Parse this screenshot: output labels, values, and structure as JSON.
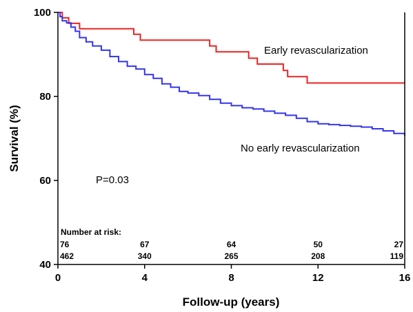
{
  "chart_data": {
    "type": "line",
    "title": "",
    "xlabel": "Follow-up (years)",
    "ylabel": "Survival (%)",
    "xlim": [
      0,
      16
    ],
    "ylim": [
      40,
      100
    ],
    "xticks": [
      0,
      4,
      8,
      12,
      16
    ],
    "yticks": [
      40,
      60,
      80,
      100
    ],
    "grid": false,
    "legend": "none",
    "series": [
      {
        "name": "Early revascularization",
        "color": "#ee2222",
        "step": true,
        "x": [
          0,
          0.2,
          0.3,
          0.5,
          0.7,
          1.0,
          3.5,
          3.8,
          7.0,
          7.3,
          8.8,
          9.2,
          10.4,
          10.6,
          11.5,
          16
        ],
        "y": [
          100,
          98.7,
          98.7,
          97.4,
          97.4,
          96.1,
          94.8,
          93.4,
          92.0,
          90.6,
          89.1,
          87.7,
          86.2,
          84.7,
          83.2,
          83.2
        ]
      },
      {
        "name": "No early revascularization",
        "color": "#3333ee",
        "step": true,
        "x": [
          0,
          0.1,
          0.2,
          0.4,
          0.6,
          0.8,
          1.0,
          1.3,
          1.6,
          2.0,
          2.4,
          2.8,
          3.2,
          3.6,
          4.0,
          4.4,
          4.8,
          5.2,
          5.6,
          6.0,
          6.5,
          7.0,
          7.5,
          8.0,
          8.5,
          9.0,
          9.5,
          10.0,
          10.5,
          11.0,
          11.5,
          12.0,
          12.5,
          13.0,
          13.5,
          14.0,
          14.5,
          15.0,
          15.5,
          16.0
        ],
        "y": [
          100,
          99.0,
          98.0,
          97.5,
          96.5,
          95.5,
          94.0,
          93.0,
          92.0,
          91.0,
          89.5,
          88.3,
          87.2,
          86.5,
          85.2,
          84.3,
          83.0,
          82.2,
          81.2,
          80.8,
          80.2,
          79.3,
          78.4,
          77.8,
          77.3,
          77.0,
          76.5,
          76.0,
          75.5,
          74.8,
          74.0,
          73.5,
          73.3,
          73.1,
          72.9,
          72.7,
          72.3,
          71.8,
          71.2,
          70.6
        ]
      }
    ],
    "annotations": {
      "early_label": "Early revascularization",
      "no_early_label": "No early revascularization",
      "p_value": "P=0.03"
    },
    "number_at_risk": {
      "heading": "Number at risk:",
      "times": [
        0,
        4,
        8,
        12,
        16
      ],
      "early": [
        "76",
        "67",
        "64",
        "50",
        "27"
      ],
      "no_early": [
        "462",
        "340",
        "265",
        "208",
        "119"
      ]
    }
  }
}
